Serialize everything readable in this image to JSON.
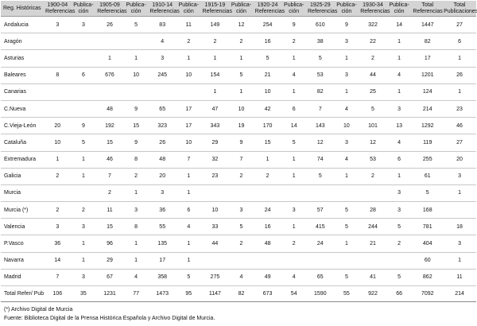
{
  "table": {
    "headers": [
      [
        "Reg. Históricas",
        ""
      ],
      [
        "1900-04",
        "Referencias"
      ],
      [
        "Publica-",
        "ción"
      ],
      [
        "1905-09",
        "Referencias"
      ],
      [
        "Publica-",
        "ción"
      ],
      [
        "1910-14",
        "Referencias"
      ],
      [
        "Publica-",
        "ción"
      ],
      [
        "1915-19",
        "Referencias"
      ],
      [
        "Publica-",
        "ción"
      ],
      [
        "1920-24",
        "Referencias"
      ],
      [
        "Publica-",
        "ción"
      ],
      [
        "1925-29",
        "Referencias"
      ],
      [
        "Publica-",
        "ción"
      ],
      [
        "1930-34",
        "Referencias"
      ],
      [
        "Publica-",
        "ción"
      ],
      [
        "Total",
        "Referencias"
      ],
      [
        "Total",
        "Publicaciones"
      ]
    ],
    "rows": [
      [
        "Andalucia",
        "3",
        "3",
        "26",
        "5",
        "83",
        "11",
        "149",
        "12",
        "254",
        "9",
        "610",
        "9",
        "322",
        "14",
        "1447",
        "27"
      ],
      [
        "Aragón",
        "",
        "",
        "",
        "",
        "4",
        "2",
        "2",
        "2",
        "16",
        "2",
        "38",
        "3",
        "22",
        "1",
        "82",
        "6"
      ],
      [
        "Asturias",
        "",
        "",
        "1",
        "1",
        "3",
        "1",
        "1",
        "1",
        "5",
        "1",
        "5",
        "1",
        "2",
        "1",
        "17",
        "1"
      ],
      [
        "Baleares",
        "8",
        "6",
        "676",
        "10",
        "245",
        "10",
        "154",
        "5",
        "21",
        "4",
        "53",
        "3",
        "44",
        "4",
        "1201",
        "26"
      ],
      [
        "Canarias",
        "",
        "",
        "",
        "",
        "",
        "",
        "1",
        "1",
        "10",
        "1",
        "82",
        "1",
        "25",
        "1",
        "124",
        "1"
      ],
      [
        "C.Nueva",
        "",
        "",
        "48",
        "9",
        "65",
        "17",
        "47",
        "10",
        "42",
        "6",
        "7",
        "4",
        "5",
        "3",
        "214",
        "23"
      ],
      [
        "C.Vieja-León",
        "20",
        "9",
        "192",
        "15",
        "323",
        "17",
        "343",
        "19",
        "170",
        "14",
        "143",
        "10",
        "101",
        "13",
        "1292",
        "46"
      ],
      [
        "Cataluña",
        "10",
        "5",
        "15",
        "9",
        "26",
        "10",
        "29",
        "9",
        "15",
        "5",
        "12",
        "3",
        "12",
        "4",
        "119",
        "27"
      ],
      [
        "Extremadura",
        "1",
        "1",
        "46",
        "8",
        "48",
        "7",
        "32",
        "7",
        "1",
        "1",
        "74",
        "4",
        "53",
        "6",
        "255",
        "20"
      ],
      [
        "Galicia",
        "2",
        "1",
        "7",
        "2",
        "20",
        "1",
        "23",
        "2",
        "2",
        "1",
        "5",
        "1",
        "2",
        "1",
        "61",
        "3"
      ],
      [
        "Murcia",
        "",
        "",
        "2",
        "1",
        "3",
        "1",
        "",
        "",
        "",
        "",
        "",
        "",
        "",
        "3",
        "5",
        "1"
      ],
      [
        "Murcia (*)",
        "2",
        "2",
        "11",
        "3",
        "36",
        "6",
        "10",
        "3",
        "24",
        "3",
        "57",
        "5",
        "28",
        "3",
        "168",
        ""
      ],
      [
        "Valencia",
        "3",
        "3",
        "15",
        "8",
        "55",
        "4",
        "33",
        "5",
        "16",
        "1",
        "415",
        "5",
        "244",
        "5",
        "781",
        "18"
      ],
      [
        "P.Vasco",
        "36",
        "1",
        "96",
        "1",
        "135",
        "1",
        "44",
        "2",
        "48",
        "2",
        "24",
        "1",
        "21",
        "2",
        "404",
        "3"
      ],
      [
        "Navarra",
        "14",
        "1",
        "29",
        "1",
        "17",
        "1",
        "",
        "",
        "",
        "",
        "",
        "",
        "",
        "",
        "60",
        "1"
      ],
      [
        "Madrid",
        "7",
        "3",
        "67",
        "4",
        "358",
        "5",
        "275",
        "4",
        "49",
        "4",
        "65",
        "5",
        "41",
        "5",
        "862",
        "11"
      ]
    ],
    "total_row": [
      "Total Refer/ Pub",
      "106",
      "35",
      "1231",
      "77",
      "1473",
      "95",
      "1147",
      "82",
      "673",
      "54",
      "1590",
      "55",
      "922",
      "66",
      "7092",
      "214"
    ]
  },
  "notes": {
    "footnote": "(*) Archivo Digital de Murcia",
    "source": "Fuente: Biblioteca Digital de la Prensa Histórica Española y Archivo Digital de Murcia."
  }
}
